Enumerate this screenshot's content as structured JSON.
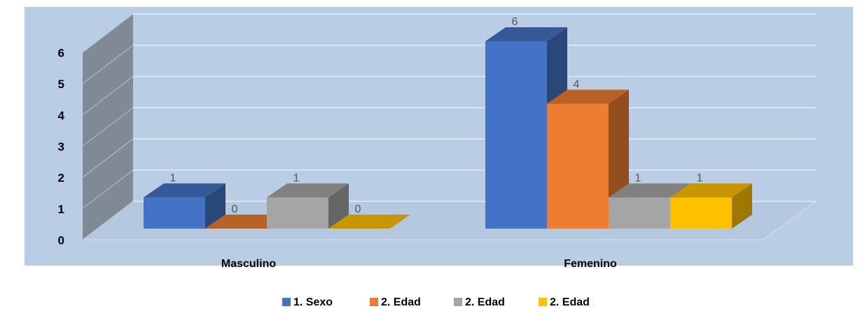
{
  "chart_data": {
    "type": "bar3d",
    "categories": [
      "Masculino",
      "Femenino"
    ],
    "series": [
      {
        "name": "1. Sexo",
        "color": "#4472c4",
        "values": [
          1,
          6
        ]
      },
      {
        "name": "2. Edad",
        "color": "#ed7d31",
        "values": [
          0,
          4
        ]
      },
      {
        "name": "2. Edad",
        "color": "#a5a5a5",
        "values": [
          1,
          1
        ]
      },
      {
        "name": "2. Edad",
        "color": "#ffc000",
        "values": [
          0,
          1
        ]
      }
    ],
    "ylim": [
      0,
      6
    ],
    "yticks": [
      0,
      1,
      2,
      3,
      4,
      5,
      6
    ],
    "grid": true,
    "legend": "bottom"
  }
}
